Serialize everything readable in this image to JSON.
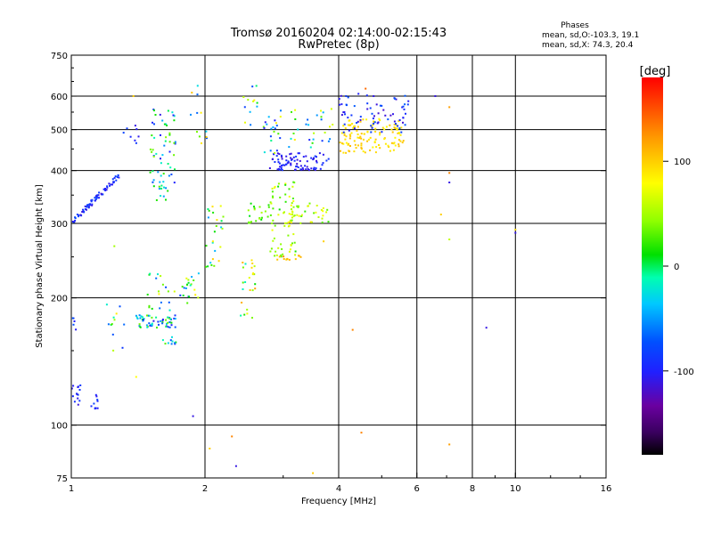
{
  "title": {
    "line1": "Tromsø 20160204 02:14:00-02:15:43",
    "line2": "RwPretec (8p)"
  },
  "phases_info": {
    "heading": "Phases",
    "line_o": "mean, sd,O:-103.3, 19.1",
    "line_x": "mean, sd,X: 74.3, 20.4"
  },
  "colorbar": {
    "label": "[deg]",
    "range": [
      -180,
      180
    ],
    "ticks": [
      "100",
      "0",
      "-100"
    ],
    "tick_values": [
      100,
      0,
      -100
    ]
  },
  "chart_data": {
    "type": "scatter",
    "title": "Tromsø 20160204 02:14:00-02:15:43",
    "subtitle": "RwPretec (8p)",
    "xlabel": "Frequency [MHz]",
    "ylabel": "Stationary phase Virtual Height [km]",
    "x_scale": "log",
    "y_scale": "log",
    "xlim": [
      1,
      16
    ],
    "ylim": [
      75,
      750
    ],
    "x_ticks": [
      1,
      2,
      4,
      6,
      8,
      10,
      16
    ],
    "x_tick_labels": [
      "1",
      "2",
      "4",
      "6",
      "8",
      "10",
      "16"
    ],
    "y_ticks": [
      75,
      100,
      200,
      300,
      400,
      500,
      600,
      750
    ],
    "y_tick_labels": [
      "75",
      "100",
      "200",
      "300",
      "400",
      "500",
      "600",
      "750"
    ],
    "x_gridlines": [
      2,
      4,
      6,
      8,
      10
    ],
    "y_gridlines": [
      100,
      200,
      300,
      400,
      500,
      600
    ],
    "color_encoding": "phase [deg]",
    "clusters": [
      {
        "x": [
          1.0,
          1.28
        ],
        "y": [
          300,
          390
        ],
        "trend": "rising",
        "phase": [
          -115,
          -80
        ],
        "n": 70
      },
      {
        "x": [
          1.0,
          1.05
        ],
        "y": [
          110,
          125
        ],
        "phase": [
          -115,
          -85
        ],
        "n": 14
      },
      {
        "x": [
          1.1,
          1.16
        ],
        "y": [
          108,
          120
        ],
        "phase": [
          -110,
          -80
        ],
        "n": 10
      },
      {
        "x": [
          1.0,
          1.05
        ],
        "y": [
          165,
          180
        ],
        "phase": [
          -110,
          -70
        ],
        "n": 5
      },
      {
        "x": [
          1.2,
          1.32
        ],
        "y": [
          150,
          195
        ],
        "phase": [
          -100,
          90
        ],
        "n": 12
      },
      {
        "x": [
          1.4,
          1.72
        ],
        "y": [
          170,
          182
        ],
        "phase": [
          -110,
          40
        ],
        "n": 60
      },
      {
        "x": [
          1.45,
          1.95
        ],
        "y": [
          185,
          230
        ],
        "phase": [
          -100,
          90
        ],
        "n": 40
      },
      {
        "x": [
          1.6,
          1.72
        ],
        "y": [
          155,
          162
        ],
        "phase": [
          -100,
          60
        ],
        "n": 10
      },
      {
        "x": [
          1.5,
          1.72
        ],
        "y": [
          340,
          560
        ],
        "phase": [
          -110,
          50
        ],
        "n": 65
      },
      {
        "x": [
          1.3,
          1.45
        ],
        "y": [
          450,
          520
        ],
        "phase": [
          -110,
          -80
        ],
        "n": 8
      },
      {
        "x": [
          1.85,
          2.05
        ],
        "y": [
          460,
          640
        ],
        "phase": [
          -100,
          110
        ],
        "n": 12
      },
      {
        "x": [
          2.0,
          2.2
        ],
        "y": [
          220,
          330
        ],
        "phase": [
          -50,
          110
        ],
        "n": 25
      },
      {
        "x": [
          2.4,
          2.6
        ],
        "y": [
          170,
          250
        ],
        "phase": [
          -20,
          120
        ],
        "n": 25
      },
      {
        "x": [
          2.4,
          2.7
        ],
        "y": [
          500,
          650
        ],
        "phase": [
          -100,
          110
        ],
        "n": 12
      },
      {
        "x": [
          2.5,
          2.85
        ],
        "y": [
          300,
          335
        ],
        "phase": [
          0,
          60
        ],
        "n": 25
      },
      {
        "x": [
          2.8,
          3.2
        ],
        "y": [
          250,
          380
        ],
        "phase": [
          10,
          80
        ],
        "n": 60
      },
      {
        "x": [
          2.9,
          3.3
        ],
        "y": [
          245,
          255
        ],
        "phase": [
          100,
          130
        ],
        "n": 12
      },
      {
        "x": [
          2.8,
          3.8
        ],
        "y": [
          400,
          440
        ],
        "phase": [
          -115,
          -85
        ],
        "n": 85
      },
      {
        "x": [
          2.7,
          3.9
        ],
        "y": [
          440,
          560
        ],
        "phase": [
          -110,
          100
        ],
        "n": 50
      },
      {
        "x": [
          3.0,
          3.8
        ],
        "y": [
          300,
          340
        ],
        "phase": [
          20,
          90
        ],
        "n": 40
      },
      {
        "x": [
          4.0,
          5.6
        ],
        "y": [
          440,
          530
        ],
        "phase": [
          80,
          110
        ],
        "n": 120
      },
      {
        "x": [
          4.0,
          5.8
        ],
        "y": [
          490,
          610
        ],
        "phase": [
          -120,
          -70
        ],
        "n": 70
      }
    ],
    "isolated_points": [
      {
        "x": 8.6,
        "y": 170,
        "phase": -110
      },
      {
        "x": 10.0,
        "y": 290,
        "phase": 100
      },
      {
        "x": 10.0,
        "y": 285,
        "phase": -110
      },
      {
        "x": 7.1,
        "y": 395,
        "phase": 130
      },
      {
        "x": 7.1,
        "y": 375,
        "phase": -110
      },
      {
        "x": 7.1,
        "y": 275,
        "phase": 60
      },
      {
        "x": 7.1,
        "y": 565,
        "phase": 120
      },
      {
        "x": 7.1,
        "y": 90,
        "phase": 120
      },
      {
        "x": 6.6,
        "y": 600,
        "phase": -110
      },
      {
        "x": 6.8,
        "y": 315,
        "phase": 100
      },
      {
        "x": 4.5,
        "y": 96,
        "phase": 130
      },
      {
        "x": 4.3,
        "y": 168,
        "phase": 130
      },
      {
        "x": 2.3,
        "y": 94,
        "phase": 130
      },
      {
        "x": 2.35,
        "y": 80,
        "phase": -110
      },
      {
        "x": 2.05,
        "y": 88,
        "phase": 100
      },
      {
        "x": 1.88,
        "y": 105,
        "phase": -110
      },
      {
        "x": 3.5,
        "y": 77,
        "phase": 100
      },
      {
        "x": 4.6,
        "y": 625,
        "phase": 140
      },
      {
        "x": 3.7,
        "y": 272,
        "phase": 100
      },
      {
        "x": 1.38,
        "y": 600,
        "phase": 100
      },
      {
        "x": 1.25,
        "y": 265,
        "phase": 50
      },
      {
        "x": 1.4,
        "y": 130,
        "phase": 80
      }
    ]
  }
}
